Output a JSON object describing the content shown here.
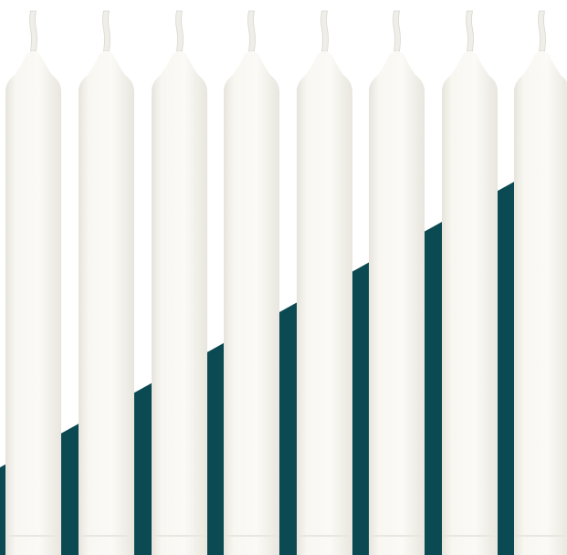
{
  "colors": {
    "background": "#ffffff",
    "accent_band": "#0b4a52",
    "candle_body": "#f7f6f1",
    "candle_shade": "#e9e7e0",
    "wick": "#efeee9"
  },
  "candles": [
    {
      "name": "candle-1"
    },
    {
      "name": "candle-2"
    },
    {
      "name": "candle-3"
    },
    {
      "name": "candle-4"
    },
    {
      "name": "candle-5"
    },
    {
      "name": "candle-6"
    },
    {
      "name": "candle-7"
    },
    {
      "name": "candle-8"
    }
  ]
}
